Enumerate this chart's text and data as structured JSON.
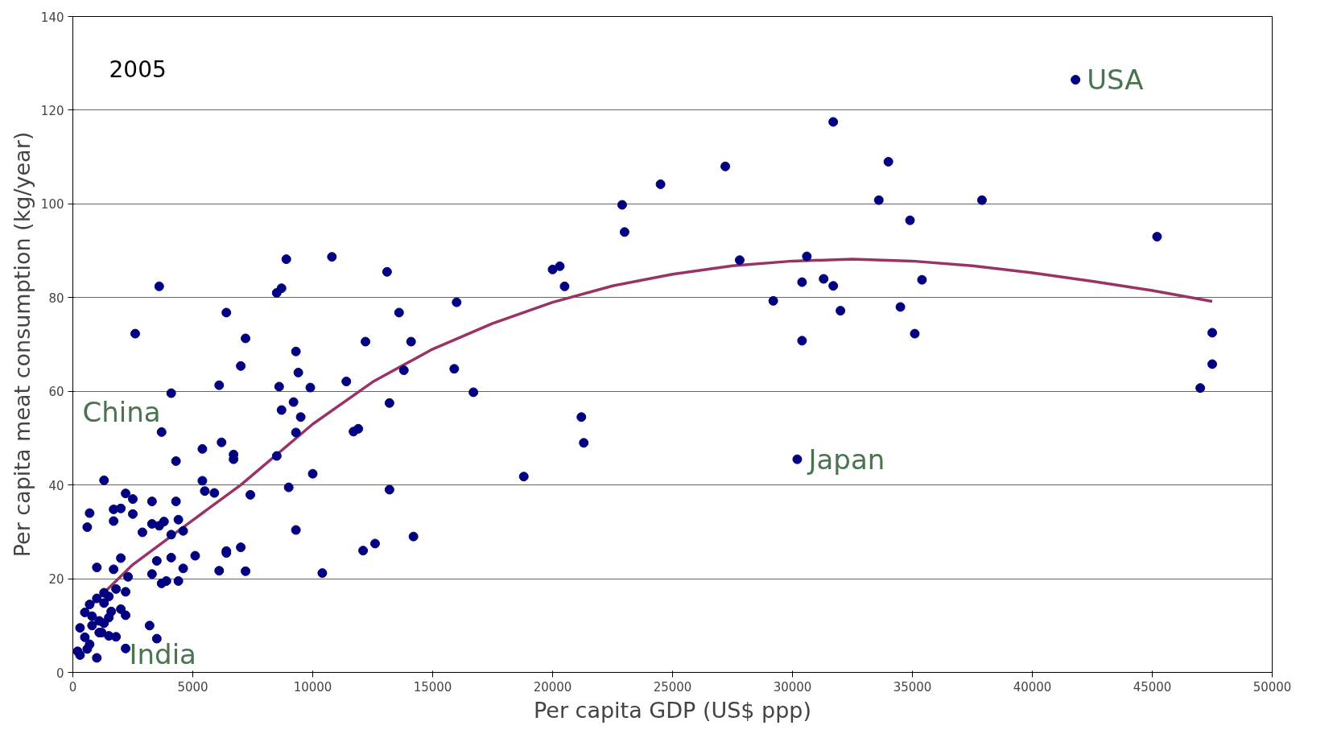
{
  "chart_data": {
    "type": "scatter",
    "xlabel": "Per capita GDP (US$ ppp)",
    "ylabel": "Per capita meat consumption (kg/year)",
    "xlim": [
      0,
      50000
    ],
    "ylim": [
      0,
      140
    ],
    "xticks": [
      0,
      5000,
      10000,
      15000,
      20000,
      25000,
      30000,
      35000,
      40000,
      45000,
      50000
    ],
    "yticks": [
      0,
      20,
      40,
      60,
      80,
      100,
      120,
      140
    ],
    "grid": "y",
    "annotations": [
      "2005",
      "China",
      "India",
      {
        "text": "USA",
        "x": 41800,
        "y": 126.5
      },
      {
        "text": "Japan",
        "x": 30200,
        "y": 45.5
      }
    ],
    "series": [
      {
        "type": "scatter",
        "marker": "circle",
        "color": "#000080",
        "x": [
          41800,
          31700,
          34000,
          27200,
          24500,
          22900,
          33600,
          37900,
          34900,
          23000,
          45200,
          30600,
          27800,
          35400,
          31300,
          30400,
          31700,
          29200,
          32000,
          34500,
          35100,
          30400,
          47500,
          47500,
          47000,
          20000,
          20300,
          20500,
          16000,
          15900,
          16700,
          21200,
          21300,
          18800,
          30200,
          10800,
          8900,
          13100,
          8500,
          8700,
          3600,
          2600,
          6400,
          7200,
          13600,
          12200,
          14100,
          9300,
          7000,
          9400,
          13800,
          11400,
          6100,
          8600,
          9900,
          4100,
          9200,
          13200,
          8700,
          9500,
          11700,
          11900,
          9300,
          3700,
          6200,
          6700,
          6700,
          5400,
          8500,
          4300,
          10000,
          9000,
          13200,
          5400,
          5500,
          5900,
          7400,
          1300,
          2200,
          2500,
          3300,
          4300,
          2000,
          1700,
          700,
          2500,
          1700,
          3300,
          3800,
          3600,
          4400,
          600,
          2900,
          4100,
          4600,
          9300,
          14200,
          12600,
          12100,
          7000,
          6400,
          6400,
          5100,
          4100,
          3500,
          2000,
          1000,
          1700,
          4600,
          6100,
          7200,
          10400,
          3300,
          2300,
          3900,
          4400,
          3700,
          2200,
          1800,
          1300,
          1500,
          1000,
          1300,
          700,
          2000,
          1600,
          500,
          800,
          1100,
          1500,
          2200,
          1300,
          800,
          300,
          1100,
          1500,
          1800,
          500,
          700,
          1200,
          3200,
          3500,
          600,
          200,
          300,
          1000,
          2200
        ],
        "values": [
          126.5,
          117.5,
          109,
          108,
          104.2,
          99.8,
          100.8,
          100.8,
          96.5,
          94,
          93,
          88.8,
          88,
          83.8,
          84,
          83.3,
          82.5,
          79.3,
          77.2,
          78,
          72.3,
          70.8,
          72.5,
          65.8,
          60.7,
          86,
          86.7,
          82.4,
          79,
          64.8,
          59.8,
          54.5,
          49,
          41.8,
          45.5,
          88.7,
          88.2,
          85.5,
          81,
          82,
          82.4,
          72.3,
          76.8,
          71.3,
          76.8,
          70.6,
          70.6,
          68.5,
          65.4,
          64,
          64.5,
          62.1,
          61.3,
          61,
          60.8,
          59.6,
          57.7,
          57.5,
          56,
          54.5,
          51.4,
          52,
          51.2,
          51.3,
          49.1,
          46.5,
          45.5,
          47.7,
          46.2,
          45.1,
          42.4,
          39.5,
          39,
          40.9,
          38.7,
          38.3,
          37.9,
          41,
          38.2,
          37,
          36.5,
          36.5,
          35,
          34.8,
          34,
          33.8,
          32.3,
          31.7,
          32.2,
          31.3,
          32.6,
          31,
          29.9,
          29.4,
          30.2,
          30.4,
          29,
          27.5,
          26,
          26.7,
          25.9,
          25.5,
          24.9,
          24.5,
          23.8,
          24.4,
          22.4,
          22,
          22.2,
          21.7,
          21.6,
          21.2,
          21,
          20.4,
          19.5,
          19.5,
          19,
          17.2,
          17.8,
          17,
          16.2,
          15.8,
          14.8,
          14.5,
          13.5,
          13,
          12.8,
          12,
          11,
          11.7,
          12.2,
          10.5,
          10,
          9.5,
          8.5,
          7.8,
          7.6,
          7.5,
          6,
          8.5,
          10,
          7.2,
          5,
          4.5,
          3.7,
          3.1,
          5.1
        ]
      },
      {
        "type": "line",
        "color": "#993366",
        "x": [
          400,
          2500,
          5000,
          7000,
          10000,
          12500,
          15000,
          17500,
          20000,
          22500,
          25000,
          27500,
          30000,
          32500,
          35000,
          37500,
          40000,
          42500,
          45000,
          47500
        ],
        "values": [
          12.5,
          23,
          32.5,
          40,
          53,
          62,
          69,
          74.5,
          79,
          82.5,
          85,
          86.8,
          87.8,
          88.2,
          87.8,
          86.8,
          85.3,
          83.5,
          81.5,
          79.2
        ]
      }
    ]
  }
}
